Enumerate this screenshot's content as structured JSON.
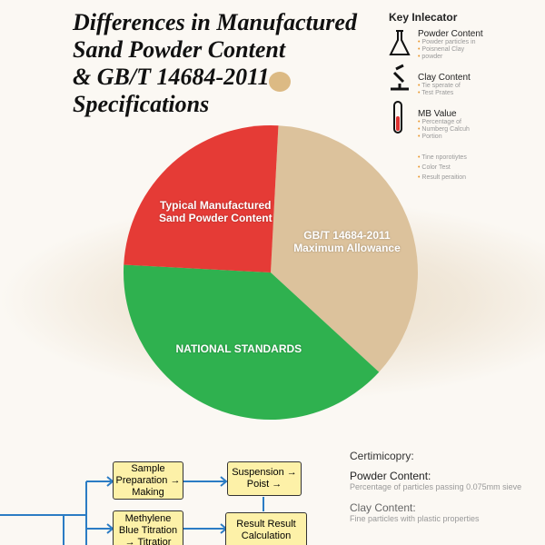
{
  "chart_data": {
    "type": "pie",
    "categories": [
      "GB/T 14684-2011 Maximum Allowance",
      "NATIONAL STANDARDS",
      "Typical Manufactured Sand Powder Content"
    ],
    "values": [
      36,
      39,
      25
    ],
    "colors": [
      "#dcc29c",
      "#2fb14f",
      "#e53b36"
    ]
  },
  "header": {
    "title_lines": [
      "Differences in Manufactured",
      "Sand Powder Content",
      "& GB/T 14684-2011",
      "Specifications"
    ]
  },
  "key": {
    "title": "Key Inlecator",
    "items": [
      {
        "title": "Powder Content",
        "notes": [
          "Powder particles in",
          "Poisnenal Clay",
          "powder"
        ]
      },
      {
        "title": "Clay Content",
        "notes": [
          "Tie sperate of",
          "Test Prates"
        ]
      },
      {
        "title": "MB Value",
        "notes": [
          "Percentage of",
          "Numberg Calcuh",
          "Portion"
        ]
      }
    ],
    "bullets": [
      "Tine nporotiytes",
      "Color Test",
      "Result peraition"
    ]
  },
  "flow": {
    "boxes": [
      "Sample Preparation → Making",
      "Suspension → Poist →",
      "Methylene Blue Titration → Titratior",
      "Result Result Calculation"
    ]
  },
  "notes": {
    "title": "Certimicopry:",
    "items": [
      {
        "title": "Powder Content:",
        "text": "Percentage of particles passing 0.075mm sieve"
      },
      {
        "title": "Clay Content:",
        "text": "Fine particles with plastic properties"
      }
    ]
  }
}
